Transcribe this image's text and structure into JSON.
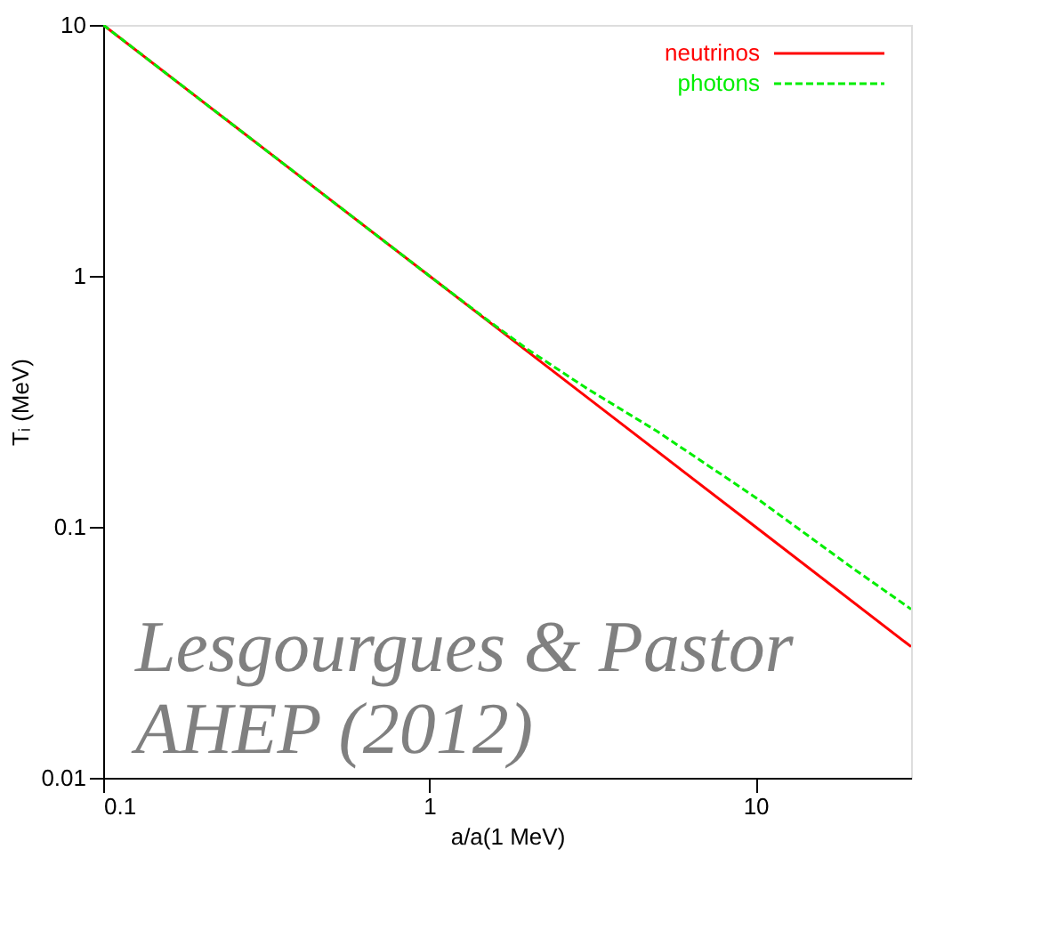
{
  "chart_data": {
    "type": "line",
    "xlabel": "a/a(1 MeV)",
    "ylabel": "Tᵢ (MeV)",
    "log": "xy",
    "grid": false,
    "legend": "top right",
    "marker": "none",
    "xlim": [
      0.1,
      30
    ],
    "xticks": [
      0.1,
      1,
      10
    ],
    "ylim": [
      0.01,
      10
    ],
    "yticks": [
      0.01,
      0.1,
      1,
      10
    ],
    "series": [
      {
        "name": "neutrinos",
        "color": "#ff0000",
        "line_style": "solid",
        "x": [
          0.1,
          0.3,
          1,
          3,
          10,
          30
        ],
        "values": [
          10,
          3.33,
          1,
          0.333,
          0.1,
          0.0333
        ]
      },
      {
        "name": "photons",
        "color": "#00ee00",
        "line_style": "dashed",
        "x": [
          0.1,
          0.3,
          1,
          1.5,
          2,
          3,
          5,
          10,
          20,
          30
        ],
        "values": [
          10,
          3.33,
          1,
          0.67,
          0.51,
          0.36,
          0.24,
          0.131,
          0.068,
          0.047
        ]
      }
    ],
    "annotations": [
      "Lesgourgues & Pastor\nAHEP (2012)"
    ]
  }
}
